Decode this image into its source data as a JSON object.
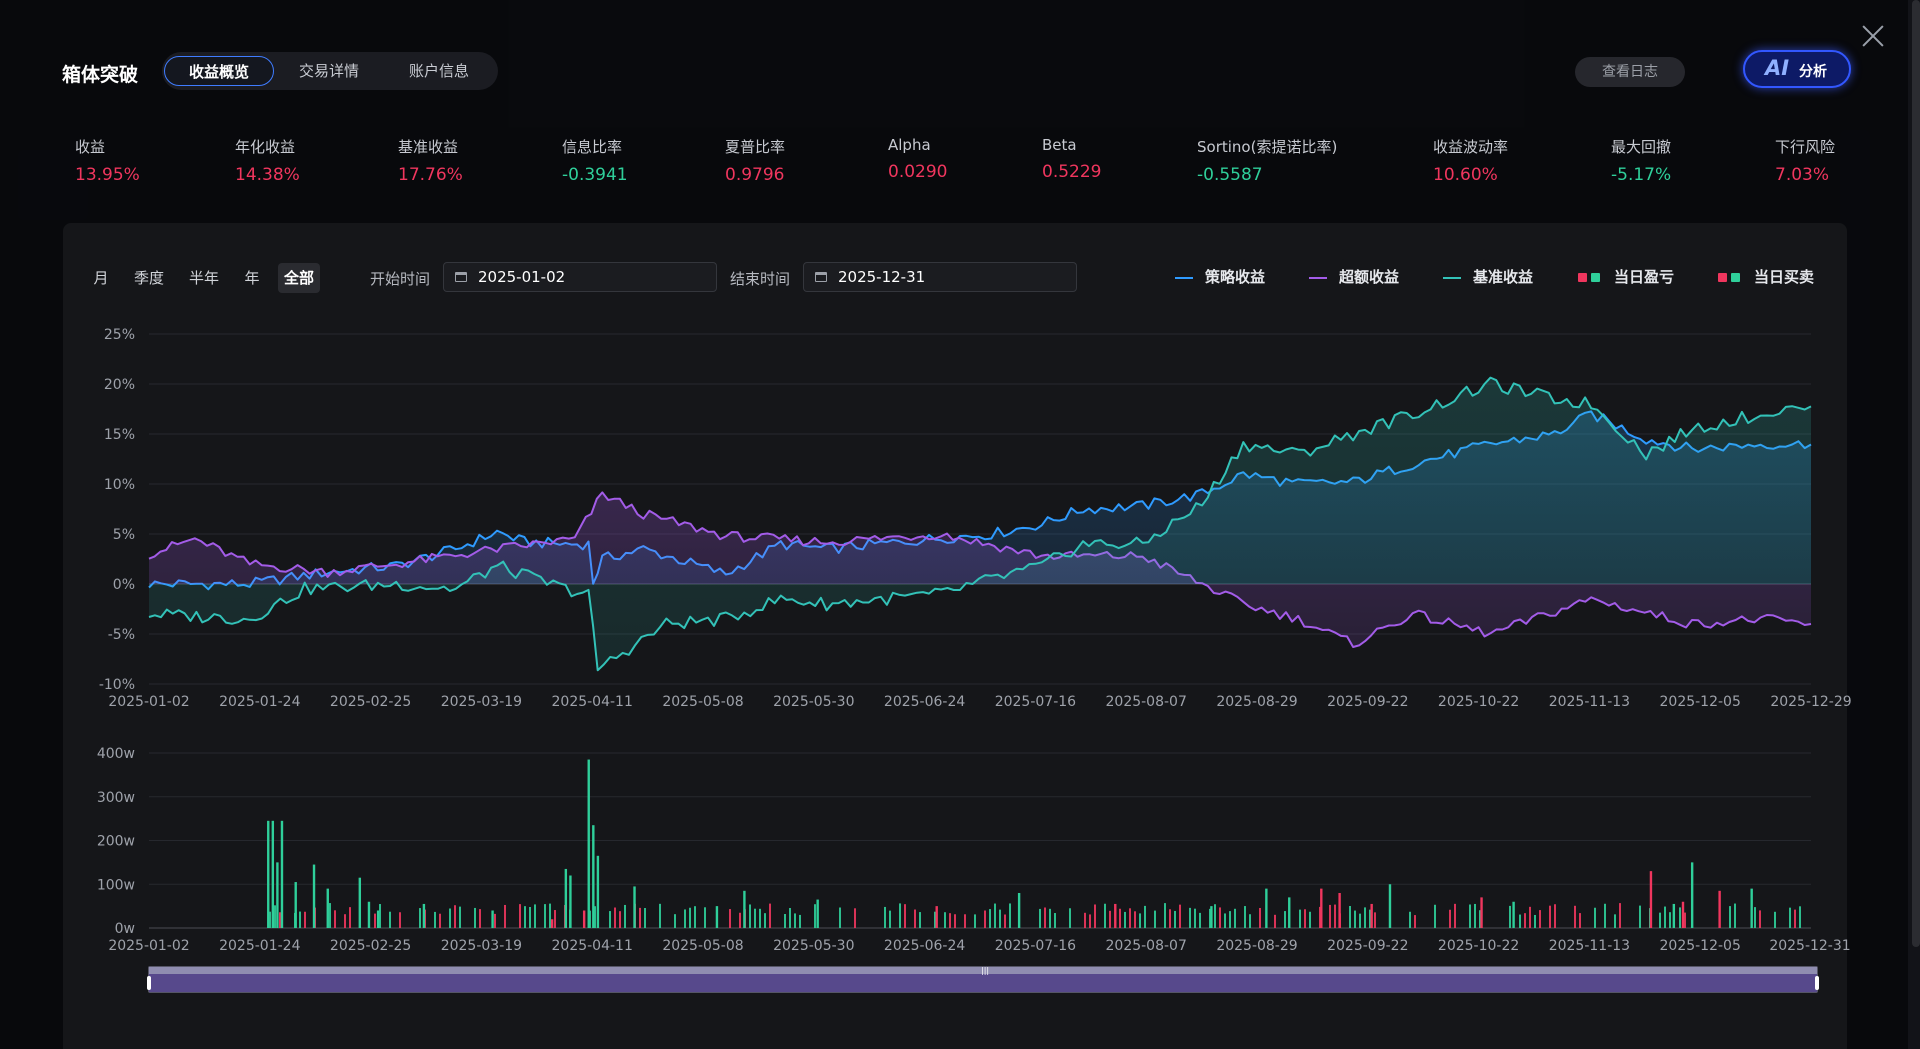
{
  "header": {
    "title": "箱体突破",
    "tabs": [
      {
        "label": "收益概览"
      },
      {
        "label": "交易详情"
      },
      {
        "label": "账户信息"
      }
    ],
    "log_button": "查看日志",
    "ai_button": {
      "icon_text": "AI",
      "label": "分析"
    }
  },
  "metrics": [
    {
      "label": "收益",
      "value": "13.95%",
      "tone": "red"
    },
    {
      "label": "年化收益",
      "value": "14.38%",
      "tone": "red"
    },
    {
      "label": "基准收益",
      "value": "17.76%",
      "tone": "red"
    },
    {
      "label": "信息比率",
      "value": "-0.3941",
      "tone": "green"
    },
    {
      "label": "夏普比率",
      "value": "0.9796",
      "tone": "red"
    },
    {
      "label": "Alpha",
      "value": "0.0290",
      "tone": "red"
    },
    {
      "label": "Beta",
      "value": "0.5229",
      "tone": "red"
    },
    {
      "label": "Sortino(索提诺比率)",
      "value": "-0.5587",
      "tone": "green"
    },
    {
      "label": "收益波动率",
      "value": "10.60%",
      "tone": "red"
    },
    {
      "label": "最大回撤",
      "value": "-5.17%",
      "tone": "green"
    },
    {
      "label": "下行风险",
      "value": "7.03%",
      "tone": "red"
    }
  ],
  "filters": {
    "periods": [
      "月",
      "季度",
      "半年",
      "年",
      "全部"
    ],
    "active_period": "全部",
    "start_label": "开始时间",
    "start_value": "2025-01-02",
    "end_label": "结束时间",
    "end_value": "2025-12-31"
  },
  "legend": [
    {
      "label": "策略收益",
      "kind": "line",
      "color": "#2f9bff"
    },
    {
      "label": "超额收益",
      "kind": "line",
      "color": "#a35ce8"
    },
    {
      "label": "基准收益",
      "kind": "line",
      "color": "#33c2b8"
    },
    {
      "label": "当日盈亏",
      "kind": "squares",
      "colors": [
        "#f0365e",
        "#2fcf9a"
      ]
    },
    {
      "label": "当日买卖",
      "kind": "squares",
      "colors": [
        "#f0365e",
        "#2fcf9a"
      ]
    }
  ],
  "colors": {
    "strategy": "#2f9bff",
    "excess": "#a35ce8",
    "benchmark": "#33c2b8",
    "up": "#f0365e",
    "down": "#2fcf9a"
  },
  "chart_data": [
    {
      "type": "area",
      "x_ticks": [
        "2025-01-02",
        "2025-01-24",
        "2025-02-25",
        "2025-03-19",
        "2025-04-11",
        "2025-05-08",
        "2025-05-30",
        "2025-06-24",
        "2025-07-16",
        "2025-08-07",
        "2025-08-29",
        "2025-09-22",
        "2025-10-22",
        "2025-11-13",
        "2025-12-05",
        "2025-12-29"
      ],
      "y_ticks": [
        "25%",
        "20%",
        "15%",
        "10%",
        "5%",
        "0%",
        "-5%",
        "-10%"
      ],
      "ylim": [
        -10,
        25
      ],
      "x_range": [
        "2025-01-02",
        "2025-12-31"
      ],
      "series": [
        {
          "name": "策略收益",
          "points": [
            [
              "2025-01-02",
              0.0
            ],
            [
              "2025-01-24",
              0.0
            ],
            [
              "2025-02-10",
              1.2
            ],
            [
              "2025-02-25",
              1.8
            ],
            [
              "2025-03-10",
              3.5
            ],
            [
              "2025-03-19",
              5.2
            ],
            [
              "2025-03-25",
              4.2
            ],
            [
              "2025-04-03",
              4.0
            ],
            [
              "2025-04-08",
              4.0
            ],
            [
              "2025-04-09",
              0.2
            ],
            [
              "2025-04-11",
              2.5
            ],
            [
              "2025-04-20",
              3.5
            ],
            [
              "2025-05-08",
              1.0
            ],
            [
              "2025-05-20",
              4.0
            ],
            [
              "2025-05-30",
              3.5
            ],
            [
              "2025-06-24",
              4.6
            ],
            [
              "2025-07-05",
              5.0
            ],
            [
              "2025-07-16",
              6.0
            ],
            [
              "2025-07-25",
              7.5
            ],
            [
              "2025-08-07",
              7.8
            ],
            [
              "2025-08-20",
              9.0
            ],
            [
              "2025-08-29",
              11.0
            ],
            [
              "2025-09-10",
              10.0
            ],
            [
              "2025-09-22",
              10.2
            ],
            [
              "2025-10-05",
              12.0
            ],
            [
              "2025-10-22",
              14.0
            ],
            [
              "2025-11-05",
              15.0
            ],
            [
              "2025-11-13",
              17.0
            ],
            [
              "2025-11-25",
              14.5
            ],
            [
              "2025-12-05",
              13.5
            ],
            [
              "2025-12-20",
              14.0
            ],
            [
              "2025-12-31",
              13.95
            ]
          ]
        },
        {
          "name": "超额收益",
          "points": [
            [
              "2025-01-02",
              3.0
            ],
            [
              "2025-01-12",
              4.5
            ],
            [
              "2025-01-24",
              2.0
            ],
            [
              "2025-02-10",
              1.2
            ],
            [
              "2025-02-25",
              2.0
            ],
            [
              "2025-03-19",
              3.5
            ],
            [
              "2025-04-05",
              4.5
            ],
            [
              "2025-04-11",
              9.0
            ],
            [
              "2025-04-20",
              7.0
            ],
            [
              "2025-05-08",
              4.8
            ],
            [
              "2025-05-30",
              4.2
            ],
            [
              "2025-06-24",
              5.0
            ],
            [
              "2025-07-16",
              2.8
            ],
            [
              "2025-08-07",
              2.8
            ],
            [
              "2025-08-20",
              0.0
            ],
            [
              "2025-08-29",
              -2.0
            ],
            [
              "2025-09-10",
              -3.5
            ],
            [
              "2025-09-22",
              -6.0
            ],
            [
              "2025-10-05",
              -3.0
            ],
            [
              "2025-10-22",
              -5.0
            ],
            [
              "2025-11-13",
              -1.5
            ],
            [
              "2025-12-05",
              -4.0
            ],
            [
              "2025-12-20",
              -3.5
            ],
            [
              "2025-12-31",
              -4.0
            ]
          ]
        },
        {
          "name": "基准收益",
          "points": [
            [
              "2025-01-02",
              -3.0
            ],
            [
              "2025-01-24",
              -3.5
            ],
            [
              "2025-02-05",
              -0.5
            ],
            [
              "2025-02-25",
              0.0
            ],
            [
              "2025-03-10",
              -0.5
            ],
            [
              "2025-03-19",
              1.8
            ],
            [
              "2025-04-03",
              -0.5
            ],
            [
              "2025-04-08",
              -1.0
            ],
            [
              "2025-04-10",
              -8.5
            ],
            [
              "2025-04-25",
              -4.0
            ],
            [
              "2025-05-08",
              -3.5
            ],
            [
              "2025-05-20",
              -1.5
            ],
            [
              "2025-05-30",
              -2.0
            ],
            [
              "2025-06-24",
              -1.0
            ],
            [
              "2025-07-05",
              0.5
            ],
            [
              "2025-07-16",
              1.8
            ],
            [
              "2025-07-25",
              4.0
            ],
            [
              "2025-08-07",
              4.0
            ],
            [
              "2025-08-20",
              8.0
            ],
            [
              "2025-08-29",
              14.0
            ],
            [
              "2025-09-10",
              13.0
            ],
            [
              "2025-09-22",
              15.0
            ],
            [
              "2025-10-05",
              17.0
            ],
            [
              "2025-10-22",
              20.0
            ],
            [
              "2025-11-05",
              18.5
            ],
            [
              "2025-11-13",
              18.0
            ],
            [
              "2025-11-25",
              13.0
            ],
            [
              "2025-12-05",
              15.5
            ],
            [
              "2025-12-20",
              17.0
            ],
            [
              "2025-12-31",
              17.76
            ]
          ]
        }
      ]
    },
    {
      "type": "bar",
      "x_ticks": [
        "2025-01-02",
        "2025-01-24",
        "2025-02-25",
        "2025-03-19",
        "2025-04-11",
        "2025-05-08",
        "2025-05-30",
        "2025-06-24",
        "2025-07-16",
        "2025-08-07",
        "2025-08-29",
        "2025-09-22",
        "2025-10-22",
        "2025-11-13",
        "2025-12-05",
        "2025-12-31"
      ],
      "y_ticks": [
        "400w",
        "300w",
        "200w",
        "100w",
        "0w"
      ],
      "ylim": [
        0,
        400
      ],
      "unit": "w",
      "bars": [
        {
          "date": "2025-01-28",
          "value": 245,
          "dir": "down"
        },
        {
          "date": "2025-01-29",
          "value": 245,
          "dir": "down"
        },
        {
          "date": "2025-01-30",
          "value": 150,
          "dir": "down"
        },
        {
          "date": "2025-01-31",
          "value": 245,
          "dir": "down"
        },
        {
          "date": "2025-02-03",
          "value": 105,
          "dir": "down"
        },
        {
          "date": "2025-02-07",
          "value": 145,
          "dir": "down"
        },
        {
          "date": "2025-02-10",
          "value": 90,
          "dir": "down"
        },
        {
          "date": "2025-02-17",
          "value": 115,
          "dir": "down"
        },
        {
          "date": "2025-02-19",
          "value": 60,
          "dir": "down"
        },
        {
          "date": "2025-02-21",
          "value": 40,
          "dir": "down"
        },
        {
          "date": "2025-03-03",
          "value": 55,
          "dir": "down"
        },
        {
          "date": "2025-03-18",
          "value": 40,
          "dir": "down"
        },
        {
          "date": "2025-03-31",
          "value": 20,
          "dir": "up"
        },
        {
          "date": "2025-04-03",
          "value": 135,
          "dir": "down"
        },
        {
          "date": "2025-04-04",
          "value": 120,
          "dir": "down"
        },
        {
          "date": "2025-04-07",
          "value": 40,
          "dir": "up"
        },
        {
          "date": "2025-04-08",
          "value": 385,
          "dir": "down"
        },
        {
          "date": "2025-04-09",
          "value": 235,
          "dir": "down"
        },
        {
          "date": "2025-04-10",
          "value": 165,
          "dir": "down"
        },
        {
          "date": "2025-04-18",
          "value": 95,
          "dir": "down"
        },
        {
          "date": "2025-05-06",
          "value": 50,
          "dir": "down"
        },
        {
          "date": "2025-05-12",
          "value": 85,
          "dir": "down"
        },
        {
          "date": "2025-05-28",
          "value": 65,
          "dir": "down"
        },
        {
          "date": "2025-06-23",
          "value": 50,
          "dir": "up"
        },
        {
          "date": "2025-07-11",
          "value": 80,
          "dir": "down"
        },
        {
          "date": "2025-08-01",
          "value": 55,
          "dir": "up"
        },
        {
          "date": "2025-08-22",
          "value": 50,
          "dir": "down"
        },
        {
          "date": "2025-09-03",
          "value": 90,
          "dir": "down"
        },
        {
          "date": "2025-09-08",
          "value": 70,
          "dir": "down"
        },
        {
          "date": "2025-09-15",
          "value": 90,
          "dir": "up"
        },
        {
          "date": "2025-09-19",
          "value": 80,
          "dir": "up"
        },
        {
          "date": "2025-09-26",
          "value": 55,
          "dir": "up"
        },
        {
          "date": "2025-09-30",
          "value": 100,
          "dir": "down"
        },
        {
          "date": "2025-10-20",
          "value": 70,
          "dir": "up"
        },
        {
          "date": "2025-10-27",
          "value": 60,
          "dir": "down"
        },
        {
          "date": "2025-11-26",
          "value": 130,
          "dir": "up"
        },
        {
          "date": "2025-12-01",
          "value": 55,
          "dir": "down"
        },
        {
          "date": "2025-12-03",
          "value": 60,
          "dir": "up"
        },
        {
          "date": "2025-12-05",
          "value": 150,
          "dir": "down"
        },
        {
          "date": "2025-12-11",
          "value": 85,
          "dir": "up"
        },
        {
          "date": "2025-12-18",
          "value": 90,
          "dir": "down"
        }
      ]
    }
  ]
}
